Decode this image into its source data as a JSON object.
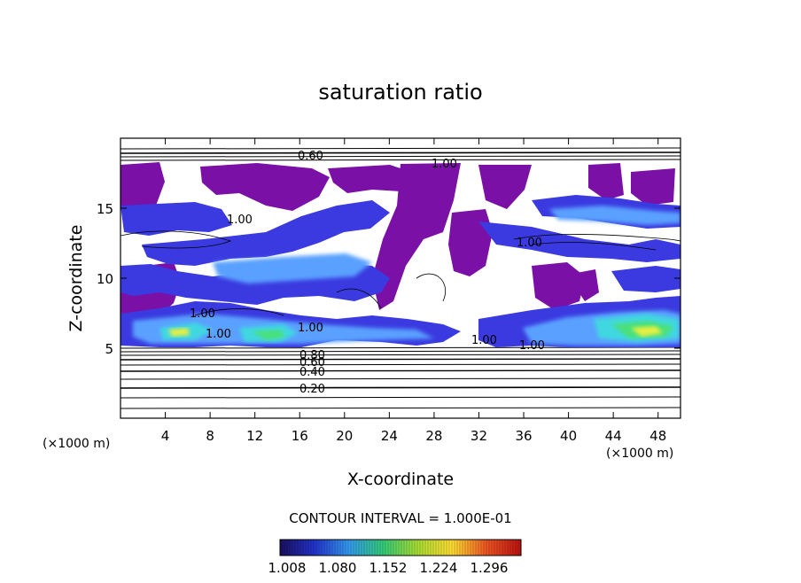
{
  "chart_data": {
    "type": "contour",
    "title": "saturation ratio",
    "xlabel": "X-coordinate",
    "ylabel": "Z-coordinate",
    "x_unit": "(×1000 m)",
    "xlim": [
      0,
      50
    ],
    "ylim": [
      0,
      20
    ],
    "x_ticks": [
      4,
      8,
      12,
      16,
      20,
      24,
      28,
      32,
      36,
      40,
      44,
      48
    ],
    "y_ticks": [
      5,
      10,
      15
    ],
    "contour_labels": [
      "0.60",
      "1.00",
      "1.00",
      "1.00",
      "1.00",
      "1.00",
      "1.00",
      "1.00",
      "1.00",
      "0.80",
      "0.60",
      "0.40",
      "0.20"
    ],
    "contour_interval_text": "CONTOUR INTERVAL = 1.000E-01",
    "colorbar": {
      "tick_labels": [
        "1.008",
        "1.080",
        "1.152",
        "1.224",
        "1.296"
      ],
      "colors": [
        "#1a1060",
        "#2233cc",
        "#3399ee",
        "#33cc77",
        "#aadd33",
        "#ffdd33",
        "#ee5522",
        "#bb1111"
      ]
    },
    "fill_colors": {
      "purple": "#7a10a6",
      "blue": "#3a3ae0",
      "light_blue": "#5aa0ff",
      "cyan": "#40d8e0",
      "green": "#4ae07a",
      "yellow": "#e8f040"
    }
  }
}
